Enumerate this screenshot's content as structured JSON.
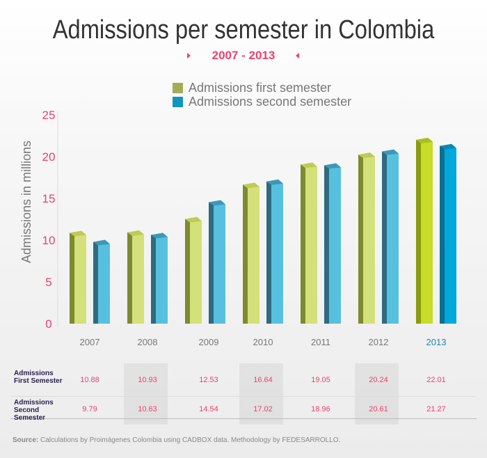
{
  "title": "Admissions per semester in Colombia",
  "subtitle": "2007 - 2013",
  "chart_data": {
    "type": "bar",
    "title": "Admissions per semester in Colombia",
    "subtitle": "2007 - 2013",
    "ylabel": "Admissions in millions",
    "xlabel": "",
    "ylim": [
      0,
      25
    ],
    "yticks": [
      "0",
      "5",
      "10",
      "15",
      "20",
      "25"
    ],
    "categories": [
      "2007",
      "2008",
      "2009",
      "2010",
      "2011",
      "2012",
      "2013"
    ],
    "series": [
      {
        "name": "Admissions first semester",
        "color": "#a3ad55",
        "values": [
          10.88,
          10.93,
          12.53,
          16.64,
          19.05,
          20.24,
          22.01
        ]
      },
      {
        "name": "Admissions second semester",
        "color": "#0f95c0",
        "values": [
          9.79,
          10.63,
          14.54,
          17.02,
          18.96,
          20.61,
          21.27
        ]
      }
    ],
    "legend": "top-center",
    "grid": false
  },
  "table": {
    "rows": [
      {
        "label": "Admissions First Semester",
        "values": [
          "10.88",
          "10.93",
          "12.53",
          "16.64",
          "19.05",
          "20.24",
          "22.01"
        ]
      },
      {
        "label": "Admissions Second Semester",
        "values": [
          "9.79",
          "10.63",
          "14.54",
          "17.02",
          "18.96",
          "20.61",
          "21.27"
        ]
      }
    ]
  },
  "source_label": "Source:",
  "source_text": " Calculations by Proimágenes Colombia using CADBOX data. Methodology by FEDESARROLLO."
}
